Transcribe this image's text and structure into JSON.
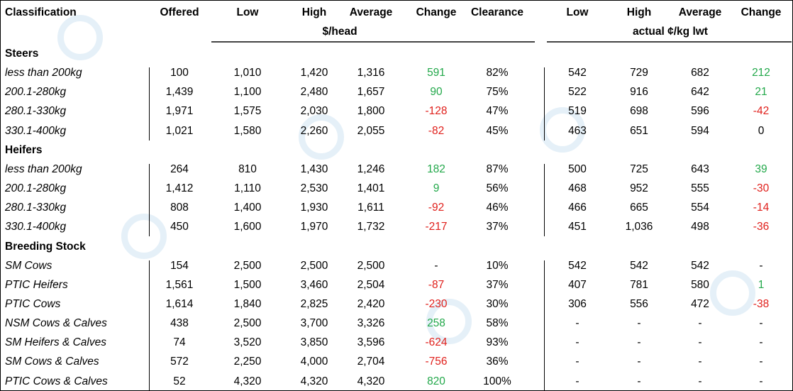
{
  "header": {
    "columns": [
      "Classification",
      "Offered",
      "Low",
      "High",
      "Average",
      "Change",
      "Clearance",
      "Low",
      "High",
      "Average",
      "Change"
    ],
    "units": [
      "$/head",
      "actual ¢/kg lwt"
    ]
  },
  "sections": [
    {
      "title": "Steers",
      "rows": [
        [
          "less than 200kg",
          "100",
          "1,010",
          "1,420",
          "1,316",
          "591",
          "82%",
          "542",
          "729",
          "682",
          "212"
        ],
        [
          "200.1-280kg",
          "1,439",
          "1,100",
          "2,480",
          "1,657",
          "90",
          "75%",
          "522",
          "916",
          "642",
          "21"
        ],
        [
          "280.1-330kg",
          "1,971",
          "1,575",
          "2,030",
          "1,800",
          "-128",
          "47%",
          "519",
          "698",
          "596",
          "-42"
        ],
        [
          "330.1-400kg",
          "1,021",
          "1,580",
          "2,260",
          "2,055",
          "-82",
          "45%",
          "463",
          "651",
          "594",
          "0"
        ]
      ]
    },
    {
      "title": "Heifers",
      "rows": [
        [
          "less than 200kg",
          "264",
          "810",
          "1,430",
          "1,246",
          "182",
          "87%",
          "500",
          "725",
          "643",
          "39"
        ],
        [
          "200.1-280kg",
          "1,412",
          "1,110",
          "2,530",
          "1,401",
          "9",
          "56%",
          "468",
          "952",
          "555",
          "-30"
        ],
        [
          "280.1-330kg",
          "808",
          "1,400",
          "1,930",
          "1,611",
          "-92",
          "46%",
          "466",
          "665",
          "554",
          "-14"
        ],
        [
          "330.1-400kg",
          "450",
          "1,600",
          "1,970",
          "1,732",
          "-217",
          "37%",
          "451",
          "1,036",
          "498",
          "-36"
        ]
      ]
    },
    {
      "title": "Breeding Stock",
      "rows": [
        [
          "SM Cows",
          "154",
          "2,500",
          "2,500",
          "2,500",
          "-",
          "10%",
          "542",
          "542",
          "542",
          "-"
        ],
        [
          "PTIC Heifers",
          "1,561",
          "1,500",
          "3,460",
          "2,504",
          "-87",
          "37%",
          "407",
          "781",
          "580",
          "1"
        ],
        [
          "PTIC Cows",
          "1,614",
          "1,840",
          "2,825",
          "2,420",
          "-230",
          "30%",
          "306",
          "556",
          "472",
          "-38"
        ],
        [
          "NSM Cows & Calves",
          "438",
          "2,500",
          "3,700",
          "3,326",
          "258",
          "58%",
          "-",
          "-",
          "-",
          "-"
        ],
        [
          "SM Heifers & Calves",
          "74",
          "3,520",
          "3,850",
          "3,596",
          "-624",
          "93%",
          "-",
          "-",
          "-",
          "-"
        ],
        [
          "SM Cows & Calves",
          "572",
          "2,250",
          "4,000",
          "2,704",
          "-756",
          "36%",
          "-",
          "-",
          "-",
          "-"
        ],
        [
          "PTIC Cows & Calves",
          "52",
          "4,320",
          "4,320",
          "4,320",
          "820",
          "100%",
          "-",
          "-",
          "-",
          "-"
        ]
      ]
    }
  ]
}
